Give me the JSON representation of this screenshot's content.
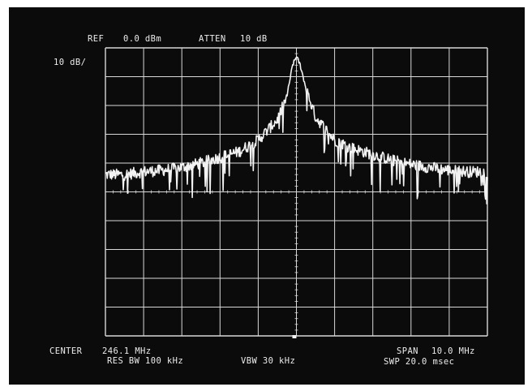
{
  "header": {
    "ref_label": "REF",
    "ref_value": "0.0 dBm",
    "atten_label": "ATTEN",
    "atten_value": "10 dB",
    "scale": "10 dB/"
  },
  "footer": {
    "center_label": "CENTER",
    "center_value": "246.1 MHz",
    "span_label": "SPAN",
    "span_value": "10.0 MHz",
    "res_bw": "RES BW 100 kHz",
    "vbw": "VBW 30 kHz",
    "sweep": "SWP 20.0 msec"
  },
  "colors": {
    "screen": "#0b0b0b",
    "trace": "#f2f2f2",
    "grid": "#d8d8d8"
  },
  "chart_data": {
    "type": "line",
    "title": "",
    "xlabel": "",
    "ylabel": "",
    "x_unit": "MHz",
    "y_unit": "dBm",
    "xlim": [
      241.1,
      251.1
    ],
    "ylim": [
      -100,
      0
    ],
    "x_divisions": 10,
    "y_divisions": 10,
    "grid": true,
    "series": [
      {
        "x": [
          241.1,
          241.6,
          242.1,
          242.6,
          243.1,
          243.6,
          244.1,
          244.6,
          245.1,
          245.6,
          245.85,
          246.0,
          246.1,
          246.2,
          246.35,
          246.6,
          247.1,
          247.6,
          248.1,
          248.6,
          249.1,
          249.6,
          250.1,
          250.6,
          251.1
        ],
        "y": [
          -44,
          -44,
          -43,
          -42.5,
          -41.5,
          -40,
          -38,
          -36,
          -32,
          -25,
          -17,
          -6,
          -3,
          -6,
          -14,
          -24,
          -32,
          -35,
          -37,
          -39,
          -40.5,
          -41.5,
          -42.5,
          -43,
          -43
        ]
      }
    ]
  }
}
